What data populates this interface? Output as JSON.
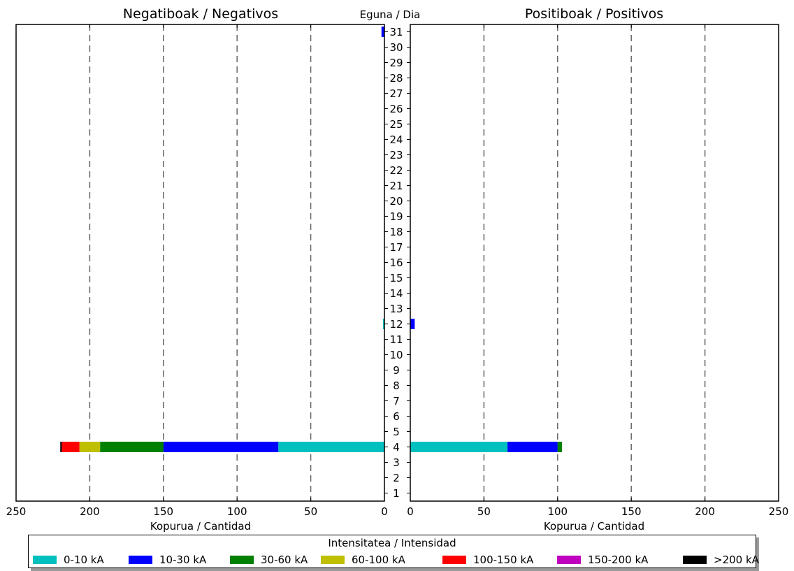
{
  "chart_data": {
    "type": "bar",
    "orientation": "horizontal-stacked-butterfly",
    "left_title": "Negatiboak / Negativos",
    "right_title": "Positiboak / Positivos",
    "center_title": "Eguna / Dia",
    "xlabel": "Kopurua / Cantidad",
    "xlim": [
      0,
      250
    ],
    "x_ticks": [
      0,
      50,
      100,
      150,
      200,
      250
    ],
    "grid": "dashed vertical at 50,100,150,200",
    "categories": [
      "1",
      "2",
      "3",
      "4",
      "5",
      "6",
      "7",
      "8",
      "9",
      "10",
      "11",
      "12",
      "13",
      "14",
      "15",
      "16",
      "17",
      "18",
      "19",
      "20",
      "21",
      "22",
      "23",
      "24",
      "25",
      "26",
      "27",
      "28",
      "29",
      "30",
      "31"
    ],
    "series": [
      {
        "name": "0-10 kA",
        "color": "#00bfbf",
        "negative": [
          0,
          0,
          0,
          72,
          0,
          0,
          0,
          0,
          0,
          0,
          0,
          1,
          0,
          0,
          0,
          0,
          0,
          0,
          0,
          0,
          0,
          0,
          0,
          0,
          0,
          0,
          0,
          0,
          0,
          0,
          0
        ],
        "positive": [
          0,
          0,
          0,
          66,
          0,
          0,
          0,
          0,
          0,
          0,
          0,
          0,
          0,
          0,
          0,
          0,
          0,
          0,
          0,
          0,
          0,
          0,
          0,
          0,
          0,
          0,
          0,
          0,
          0,
          0,
          0
        ]
      },
      {
        "name": "10-30 kA",
        "color": "#0000ff",
        "negative": [
          0,
          0,
          0,
          78,
          0,
          0,
          0,
          0,
          0,
          0,
          0,
          0,
          0,
          0,
          0,
          0,
          0,
          0,
          0,
          0,
          0,
          0,
          0,
          0,
          0,
          0,
          0,
          0,
          0,
          0,
          2
        ],
        "positive": [
          0,
          0,
          0,
          34,
          0,
          0,
          0,
          0,
          0,
          0,
          0,
          3,
          0,
          0,
          0,
          0,
          0,
          0,
          0,
          0,
          0,
          0,
          0,
          0,
          0,
          0,
          0,
          0,
          0,
          0,
          0
        ]
      },
      {
        "name": "30-60 kA",
        "color": "#008000",
        "negative": [
          0,
          0,
          0,
          43,
          0,
          0,
          0,
          0,
          0,
          0,
          0,
          0,
          0,
          0,
          0,
          0,
          0,
          0,
          0,
          0,
          0,
          0,
          0,
          0,
          0,
          0,
          0,
          0,
          0,
          0,
          0
        ],
        "positive": [
          0,
          0,
          0,
          3,
          0,
          0,
          0,
          0,
          0,
          0,
          0,
          0,
          0,
          0,
          0,
          0,
          0,
          0,
          0,
          0,
          0,
          0,
          0,
          0,
          0,
          0,
          0,
          0,
          0,
          0,
          0
        ]
      },
      {
        "name": "60-100 kA",
        "color": "#bfbf00",
        "negative": [
          0,
          0,
          0,
          14,
          0,
          0,
          0,
          0,
          0,
          0,
          0,
          0,
          0,
          0,
          0,
          0,
          0,
          0,
          0,
          0,
          0,
          0,
          0,
          0,
          0,
          0,
          0,
          0,
          0,
          0,
          0
        ],
        "positive": [
          0,
          0,
          0,
          0,
          0,
          0,
          0,
          0,
          0,
          0,
          0,
          0,
          0,
          0,
          0,
          0,
          0,
          0,
          0,
          0,
          0,
          0,
          0,
          0,
          0,
          0,
          0,
          0,
          0,
          0,
          0
        ]
      },
      {
        "name": "100-150 kA",
        "color": "#ff0000",
        "negative": [
          0,
          0,
          0,
          12,
          0,
          0,
          0,
          0,
          0,
          0,
          0,
          0,
          0,
          0,
          0,
          0,
          0,
          0,
          0,
          0,
          0,
          0,
          0,
          0,
          0,
          0,
          0,
          0,
          0,
          0,
          0
        ],
        "positive": [
          0,
          0,
          0,
          0,
          0,
          0,
          0,
          0,
          0,
          0,
          0,
          0,
          0,
          0,
          0,
          0,
          0,
          0,
          0,
          0,
          0,
          0,
          0,
          0,
          0,
          0,
          0,
          0,
          0,
          0,
          0
        ]
      },
      {
        "name": "150-200 kA",
        "color": "#bf00bf",
        "negative": [
          0,
          0,
          0,
          0,
          0,
          0,
          0,
          0,
          0,
          0,
          0,
          0,
          0,
          0,
          0,
          0,
          0,
          0,
          0,
          0,
          0,
          0,
          0,
          0,
          0,
          0,
          0,
          0,
          0,
          0,
          0
        ],
        "positive": [
          0,
          0,
          0,
          0,
          0,
          0,
          0,
          0,
          0,
          0,
          0,
          0,
          0,
          0,
          0,
          0,
          0,
          0,
          0,
          0,
          0,
          0,
          0,
          0,
          0,
          0,
          0,
          0,
          0,
          0,
          0
        ]
      },
      {
        "name": ">200 kA",
        "color": "#000000",
        "negative": [
          0,
          0,
          0,
          1,
          0,
          0,
          0,
          0,
          0,
          0,
          0,
          0,
          0,
          0,
          0,
          0,
          0,
          0,
          0,
          0,
          0,
          0,
          0,
          0,
          0,
          0,
          0,
          0,
          0,
          0,
          0
        ],
        "positive": [
          0,
          0,
          0,
          0,
          0,
          0,
          0,
          0,
          0,
          0,
          0,
          0,
          0,
          0,
          0,
          0,
          0,
          0,
          0,
          0,
          0,
          0,
          0,
          0,
          0,
          0,
          0,
          0,
          0,
          0,
          0
        ]
      }
    ]
  },
  "legend": {
    "title": "Intensitatea / Intensidad",
    "items": [
      "0-10 kA",
      "10-30 kA",
      "30-60 kA",
      "60-100 kA",
      "100-150 kA",
      "150-200 kA",
      ">200 kA"
    ]
  }
}
